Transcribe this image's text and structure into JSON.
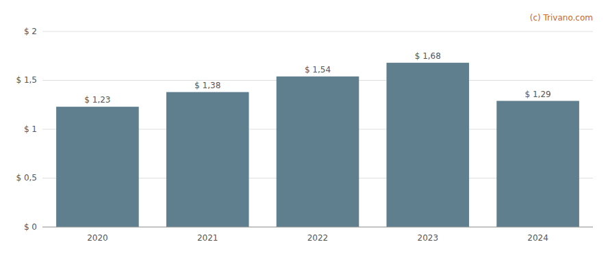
{
  "chart_data": {
    "type": "bar",
    "categories": [
      "2020",
      "2021",
      "2022",
      "2023",
      "2024"
    ],
    "values": [
      1.23,
      1.38,
      1.54,
      1.68,
      1.29
    ],
    "value_labels": [
      "$ 1,23",
      "$ 1,38",
      "$ 1,54",
      "$ 1,68",
      "$ 1,29"
    ],
    "data_labels": true,
    "color": "#5f7f8f",
    "ylim": [
      0,
      2.0
    ],
    "yticks": [
      {
        "value": 0,
        "label": "$ 0"
      },
      {
        "value": 0.5,
        "label": "$ 0,5"
      },
      {
        "value": 1.0,
        "label": "$ 1"
      },
      {
        "value": 1.5,
        "label": "$ 1,5"
      },
      {
        "value": 2.0,
        "label": "$ 2"
      }
    ],
    "grid": true,
    "annotations": [
      "(c) Trivano.com"
    ]
  }
}
